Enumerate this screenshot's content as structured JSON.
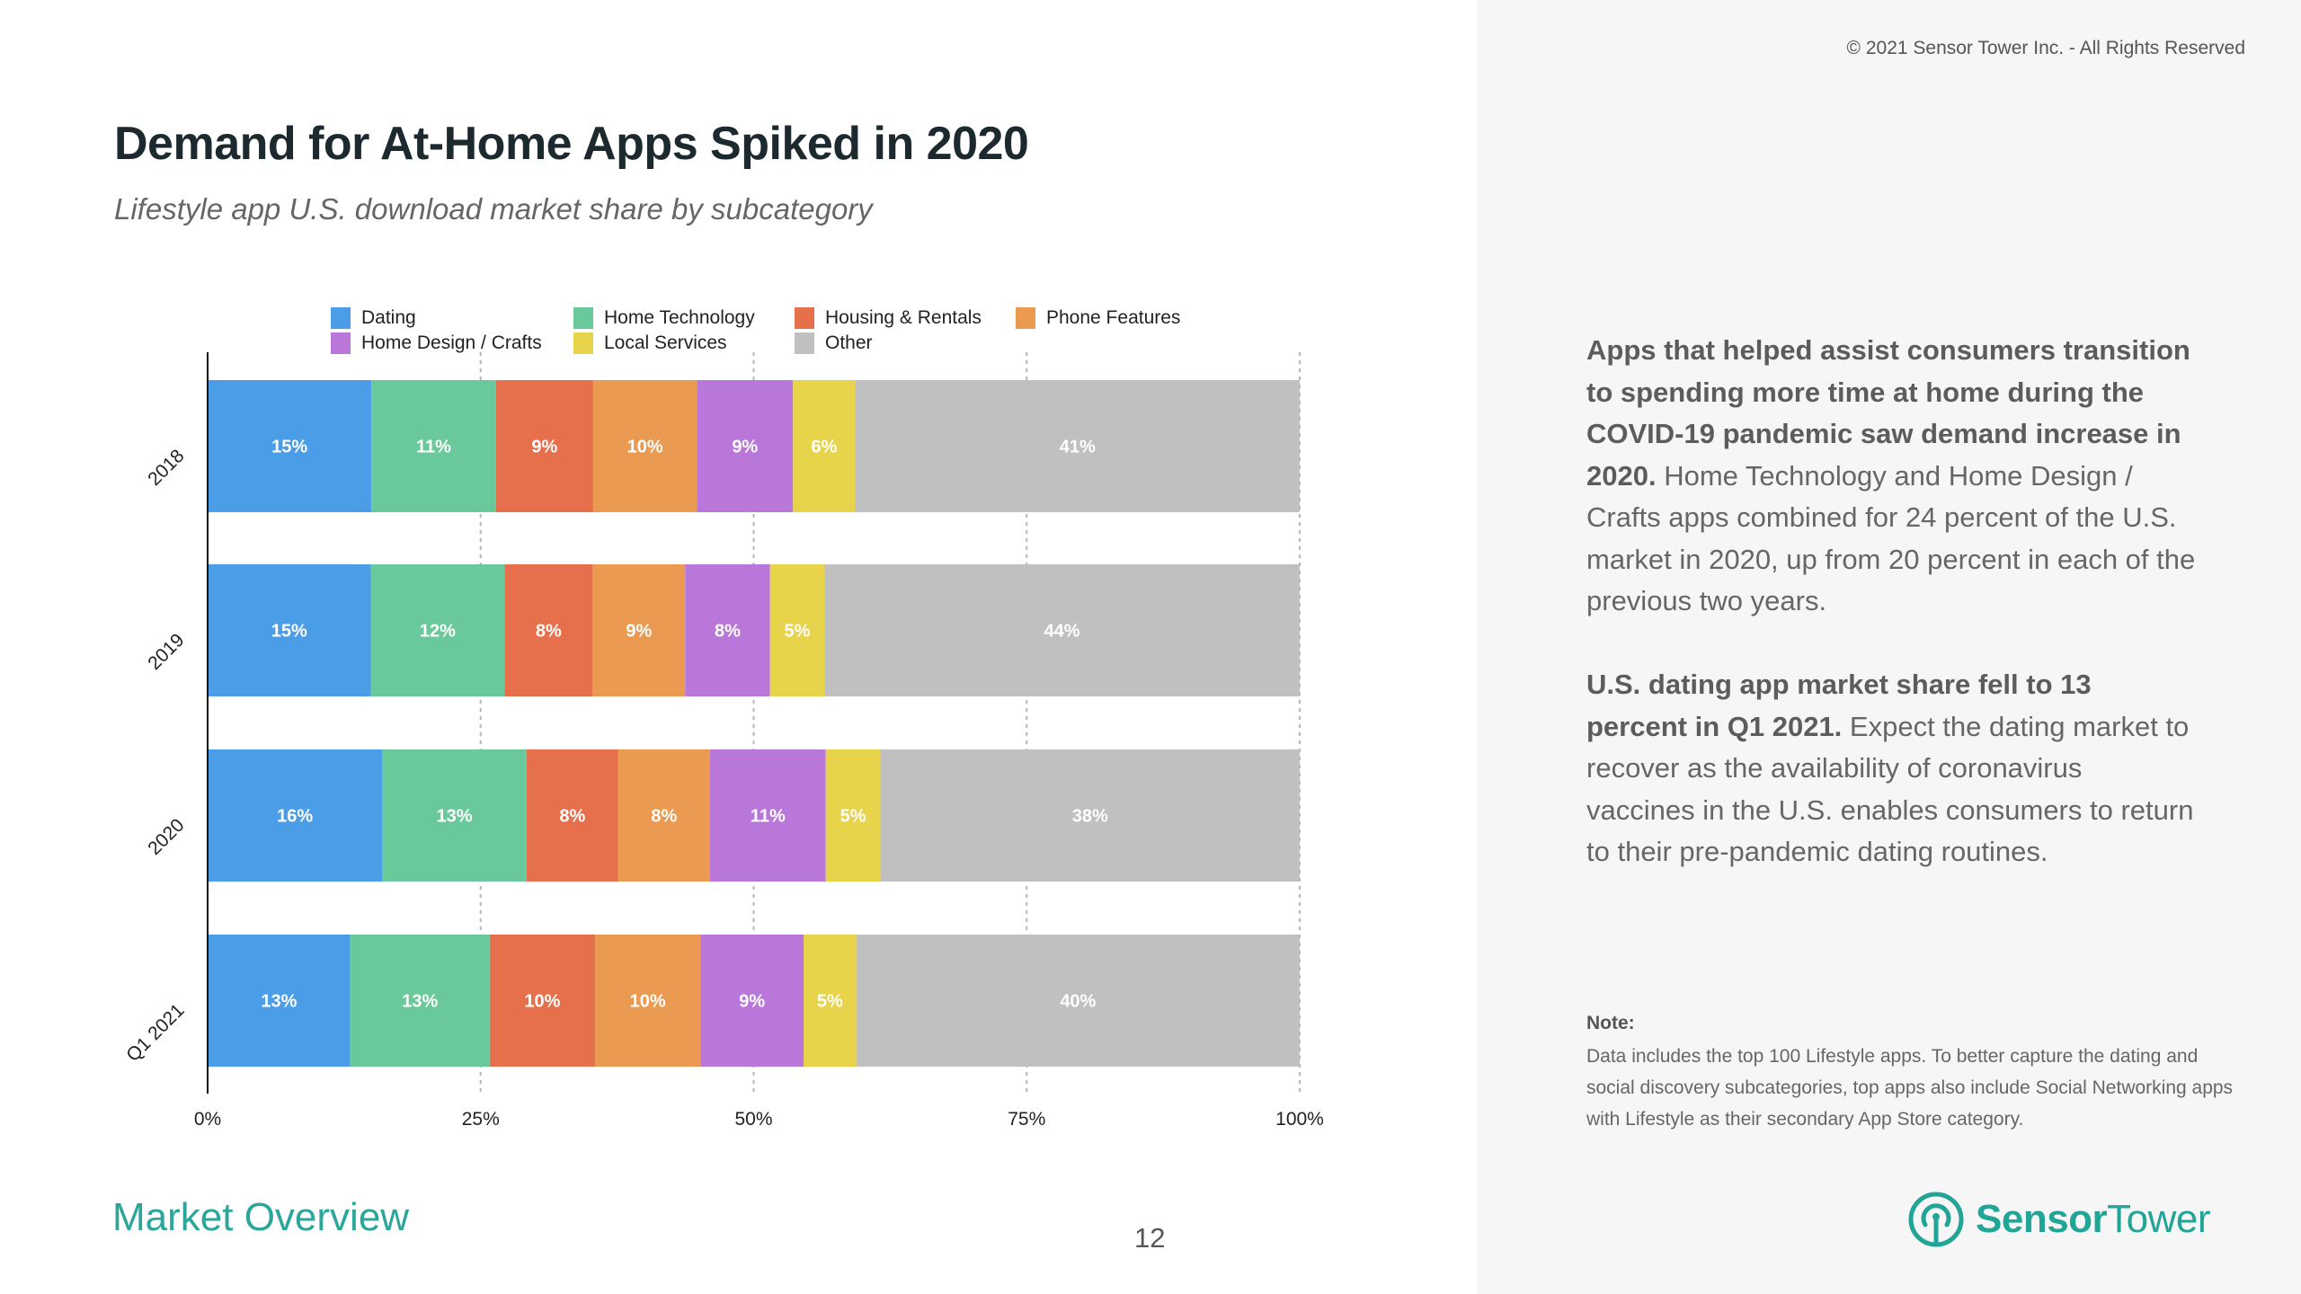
{
  "header": {
    "title": "Demand for At-Home Apps Spiked in 2020",
    "subtitle": "Lifestyle app U.S. download market share by subcategory",
    "copyright": "© 2021 Sensor Tower Inc. - All Rights Reserved"
  },
  "chart_data": {
    "type": "bar",
    "orientation": "horizontal",
    "stacked": true,
    "normalized": true,
    "categories": [
      "2018",
      "2019",
      "2020",
      "Q1 2021"
    ],
    "series": [
      {
        "name": "Dating",
        "color": "#4c9de8",
        "values": [
          15,
          15,
          16,
          13
        ],
        "labels": [
          "15%",
          "15%",
          "16%",
          "13%"
        ]
      },
      {
        "name": "Home Technology",
        "color": "#6ac99a",
        "values": [
          11.4,
          12.3,
          13.2,
          12.7
        ],
        "labels": [
          "11%",
          "12%",
          "13%",
          "13%"
        ]
      },
      {
        "name": "Housing & Rentals",
        "color": "#e6704b",
        "values": [
          8.9,
          8.1,
          8.4,
          9.6
        ],
        "labels": [
          "9%",
          "8%",
          "8%",
          "10%"
        ]
      },
      {
        "name": "Phone Features",
        "color": "#eb9a51",
        "values": [
          9.5,
          8.5,
          8.4,
          9.6
        ],
        "labels": [
          "10%",
          "9%",
          "8%",
          "10%"
        ]
      },
      {
        "name": "Home Design / Crafts",
        "color": "#b977d9",
        "values": [
          8.8,
          7.8,
          10.6,
          9.4
        ],
        "labels": [
          "9%",
          "8%",
          "11%",
          "9%"
        ]
      },
      {
        "name": "Local Services",
        "color": "#e8d44a",
        "values": [
          5.7,
          5.0,
          5.0,
          4.8
        ],
        "labels": [
          "6%",
          "5%",
          "5%",
          "5%"
        ]
      },
      {
        "name": "Other",
        "color": "#c0c0c0",
        "values": [
          40.7,
          43.7,
          38.4,
          40.4
        ],
        "labels": [
          "41%",
          "44%",
          "38%",
          "40%"
        ]
      }
    ],
    "xlim": [
      0,
      100
    ],
    "xticks": [
      "0%",
      "25%",
      "50%",
      "75%",
      "100%"
    ],
    "grid": "vertical dotted",
    "legend_position": "top",
    "xlabel": "",
    "ylabel": ""
  },
  "sidebar": {
    "paragraph1_bold": "Apps that helped assist consumers transition to spending more time at home during the COVID-19 pandemic saw demand increase in 2020.",
    "paragraph1_rest": " Home Technology and Home Design / Crafts apps combined for 24 percent of the U.S. market in 2020, up from 20 percent in each of the previous two years.",
    "paragraph2_bold": "U.S. dating app market share fell to 13 percent in Q1 2021.",
    "paragraph2_rest": " Expect the dating market to recover as the availability of coronavirus vaccines in the U.S. enables consumers to return to their pre-pandemic dating routines.",
    "note_title": "Note:",
    "note_text": "Data includes the top 100 Lifestyle apps. To better capture the dating and social discovery subcategories, top apps also include Social Networking apps with Lifestyle as their secondary App Store category."
  },
  "footer": {
    "section": "Market Overview",
    "page_number": "12",
    "logo_bold": "Sensor",
    "logo_light": "Tower"
  }
}
